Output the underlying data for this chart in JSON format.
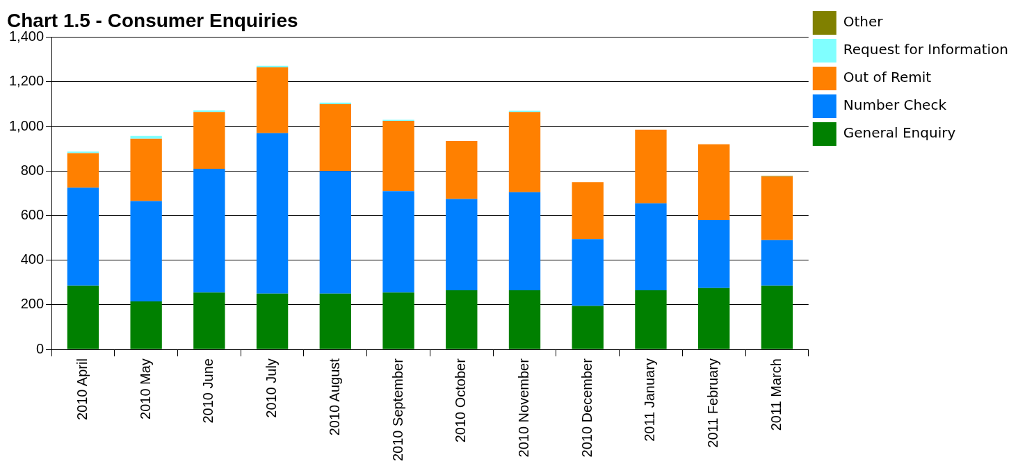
{
  "chart_data": {
    "type": "bar",
    "title": "Chart 1.5 - Consumer Enquiries",
    "stacked": true,
    "grid": "y",
    "legend": "top right",
    "categories": [
      "2010 April",
      "2010 May",
      "2010 June",
      "2010 July",
      "2010 August",
      "2010 September",
      "2010 October",
      "2010 November",
      "2010 December",
      "2011 January",
      "2011 February",
      "2011 March"
    ],
    "ylim": [
      0,
      1400
    ],
    "yticks": [
      {
        "value": 0,
        "label": "0"
      },
      {
        "value": 200,
        "label": "200"
      },
      {
        "value": 400,
        "label": "400"
      },
      {
        "value": 600,
        "label": "600"
      },
      {
        "value": 800,
        "label": "800"
      },
      {
        "value": 1000,
        "label": "1,000"
      },
      {
        "value": 1200,
        "label": "1,200"
      },
      {
        "value": 1400,
        "label": "1,400"
      }
    ],
    "series": [
      {
        "name": "General Enquiry",
        "color": "#008000",
        "values": [
          285,
          215,
          255,
          250,
          250,
          255,
          265,
          265,
          195,
          265,
          275,
          285
        ]
      },
      {
        "name": "Number Check",
        "color": "#0080ff",
        "values": [
          440,
          450,
          555,
          720,
          550,
          455,
          410,
          440,
          300,
          390,
          305,
          205
        ]
      },
      {
        "name": "Out of Remit",
        "color": "#ff8000",
        "values": [
          155,
          280,
          255,
          295,
          300,
          315,
          260,
          360,
          255,
          330,
          340,
          285
        ]
      },
      {
        "name": "Request for Information",
        "color": "#80ffff",
        "values": [
          7,
          12,
          7,
          7,
          7,
          5,
          0,
          5,
          0,
          0,
          0,
          0
        ]
      },
      {
        "name": "Other",
        "color": "#808000",
        "values": [
          0,
          0,
          0,
          0,
          0,
          0,
          0,
          0,
          0,
          0,
          0,
          3
        ]
      }
    ]
  }
}
